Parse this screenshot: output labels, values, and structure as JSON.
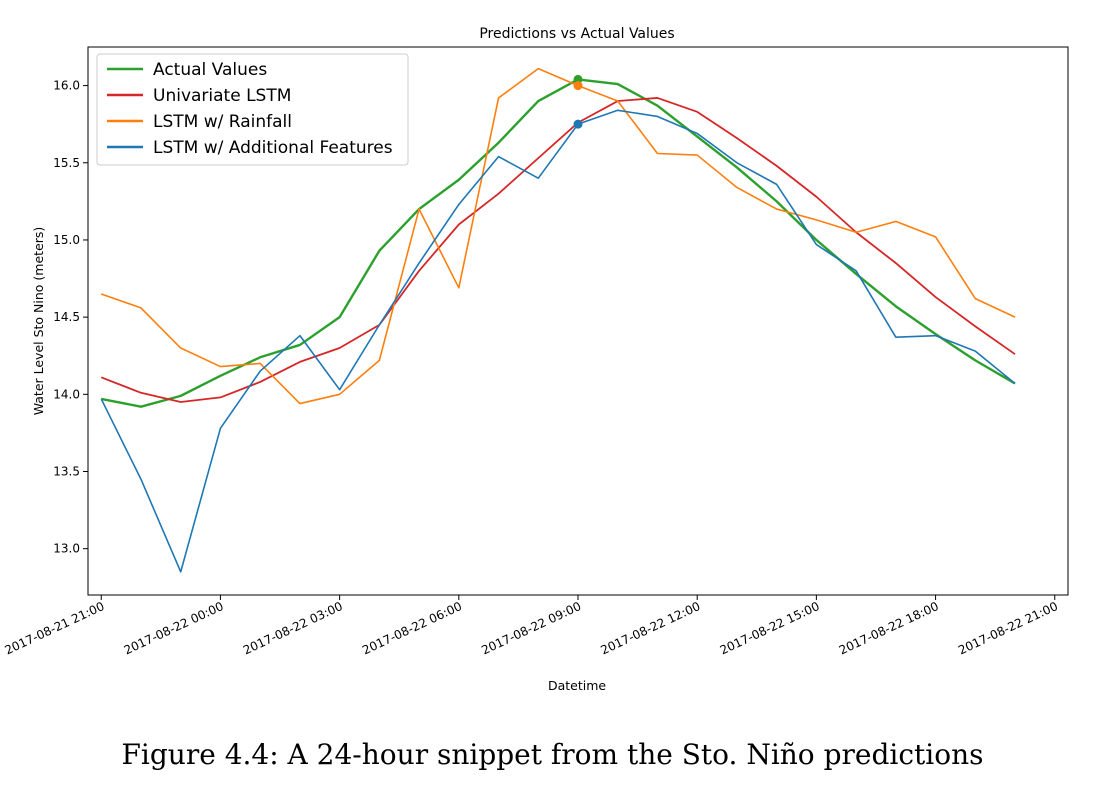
{
  "chart_data": {
    "type": "line",
    "title": "Predictions vs Actual Values",
    "xlabel": "Datetime",
    "ylabel": "Water Level Sto Nino (meters)",
    "x_tick_labels": [
      "2017-08-21 21:00",
      "2017-08-22 00:00",
      "2017-08-22 03:00",
      "2017-08-22 06:00",
      "2017-08-22 09:00",
      "2017-08-22 12:00",
      "2017-08-22 15:00",
      "2017-08-22 18:00",
      "2017-08-22 21:00"
    ],
    "y_ticks": [
      "13.0",
      "13.5",
      "14.0",
      "14.5",
      "15.0",
      "15.5",
      "16.0"
    ],
    "ylim": [
      12.7,
      16.25
    ],
    "xlim": [
      "2017-08-21 20:40",
      "2017-08-22 21:20"
    ],
    "grid": false,
    "legend_position": "top-left",
    "x": [
      "2017-08-21 21:00",
      "2017-08-21 22:00",
      "2017-08-21 23:00",
      "2017-08-22 00:00",
      "2017-08-22 01:00",
      "2017-08-22 02:00",
      "2017-08-22 03:00",
      "2017-08-22 04:00",
      "2017-08-22 05:00",
      "2017-08-22 06:00",
      "2017-08-22 07:00",
      "2017-08-22 08:00",
      "2017-08-22 09:00",
      "2017-08-22 10:00",
      "2017-08-22 11:00",
      "2017-08-22 12:00",
      "2017-08-22 13:00",
      "2017-08-22 14:00",
      "2017-08-22 15:00",
      "2017-08-22 16:00",
      "2017-08-22 17:00",
      "2017-08-22 18:00",
      "2017-08-22 19:00",
      "2017-08-22 20:00"
    ],
    "series": [
      {
        "name": "Actual Values",
        "color": "#2ca02c",
        "values": [
          13.97,
          13.92,
          13.99,
          14.12,
          14.24,
          14.32,
          14.5,
          14.93,
          15.2,
          15.39,
          15.63,
          15.9,
          16.04,
          16.01,
          15.87,
          15.67,
          15.47,
          15.25,
          15.0,
          14.78,
          14.57,
          14.39,
          14.22,
          14.07
        ],
        "marker_at": "2017-08-22 09:00"
      },
      {
        "name": "Univariate LSTM",
        "color": "#d62728",
        "values": [
          14.11,
          14.01,
          13.95,
          13.98,
          14.08,
          14.21,
          14.3,
          14.45,
          14.8,
          15.1,
          15.3,
          15.53,
          15.76,
          15.9,
          15.92,
          15.83,
          15.66,
          15.48,
          15.28,
          15.05,
          14.85,
          14.63,
          14.44,
          14.26
        ]
      },
      {
        "name": "LSTM w/ Rainfall",
        "color": "#ff7f0e",
        "values": [
          14.65,
          14.56,
          14.3,
          14.18,
          14.2,
          13.94,
          14.0,
          14.22,
          15.2,
          14.69,
          15.92,
          16.11,
          16.0,
          15.9,
          15.56,
          15.55,
          15.34,
          15.2,
          15.13,
          15.05,
          15.12,
          15.02,
          14.62,
          14.5
        ],
        "marker_at": "2017-08-22 09:00"
      },
      {
        "name": "LSTM w/ Additional Features",
        "color": "#1f77b4",
        "values": [
          13.97,
          13.45,
          12.85,
          13.78,
          14.15,
          14.38,
          14.03,
          14.45,
          14.85,
          15.23,
          15.54,
          15.4,
          15.75,
          15.84,
          15.8,
          15.69,
          15.5,
          15.36,
          14.97,
          14.8,
          14.37,
          14.38,
          14.28,
          14.07
        ],
        "marker_at": "2017-08-22 09:00"
      }
    ]
  },
  "caption": "Figure 4.4: A 24-hour snippet from the Sto. Niño predictions"
}
